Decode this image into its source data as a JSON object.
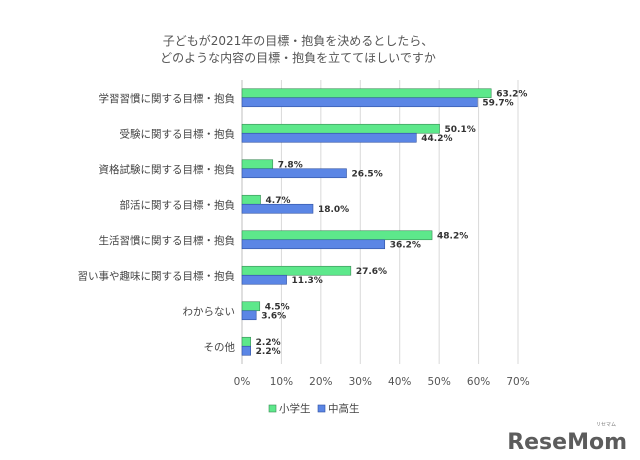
{
  "chart_data": {
    "type": "bar",
    "orientation": "horizontal",
    "title_lines": [
      "子どもが2021年の目標・抱負を決めるとしたら、",
      "どのような内容の目標・抱負を立ててほしいですか"
    ],
    "categories": [
      "学習習慣に関する目標・抱負",
      "受験に関する目標・抱負",
      "資格試験に関する目標・抱負",
      "部活に関する目標・抱負",
      "生活習慣に関する目標・抱負",
      "習い事や趣味に関する目標・抱負",
      "わからない",
      "その他"
    ],
    "series": [
      {
        "name": "小学生",
        "color": "#5DE88B",
        "values": [
          63.2,
          50.1,
          7.8,
          4.7,
          48.2,
          27.6,
          4.5,
          2.2
        ],
        "labels": [
          "63.2%",
          "50.1%",
          "7.8%",
          "4.7%",
          "48.2%",
          "27.6%",
          "4.5%",
          "2.2%"
        ]
      },
      {
        "name": "中高生",
        "color": "#5B86E5",
        "values": [
          59.7,
          44.2,
          26.5,
          18.0,
          36.2,
          11.3,
          3.6,
          2.2
        ],
        "labels": [
          "59.7%",
          "44.2%",
          "26.5%",
          "18.0%",
          "36.2%",
          "11.3%",
          "3.6%",
          "2.2%"
        ]
      }
    ],
    "xlim": [
      0,
      70
    ],
    "xticks": [
      "0%",
      "10%",
      "20%",
      "30%",
      "40%",
      "50%",
      "60%",
      "70%"
    ],
    "grid": true,
    "legend_position": "bottom"
  },
  "watermark": {
    "main": "ReseMom",
    "ruby": "リセマム"
  }
}
